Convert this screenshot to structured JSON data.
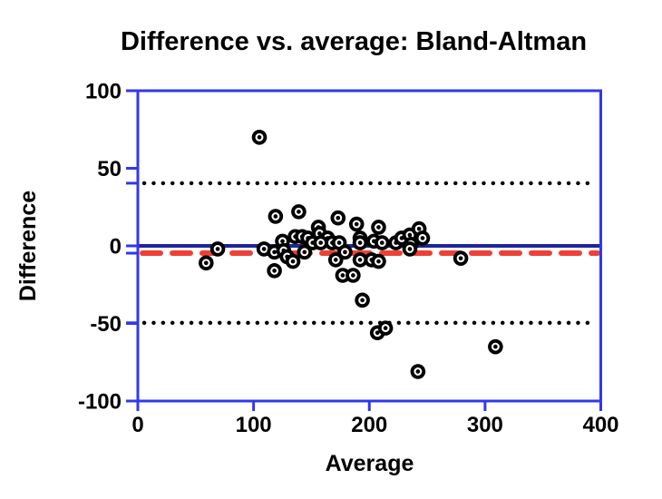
{
  "title": "Difference vs. average: Bland-Altman",
  "chart_data": {
    "type": "scatter",
    "title": "Difference vs. average: Bland-Altman",
    "xlabel": "Average",
    "ylabel": "Difference",
    "xlim": [
      0,
      400
    ],
    "ylim": [
      -100,
      100
    ],
    "x_ticks": [
      0,
      100,
      200,
      300,
      400
    ],
    "y_ticks": [
      100,
      50,
      0,
      -50,
      -100
    ],
    "grid": false,
    "legend": false,
    "marker": "filled-circle-with-center-dot",
    "reference_lines": [
      {
        "name": "zero-line",
        "y": 0,
        "style": "solid",
        "color": "#1f2496"
      },
      {
        "name": "mean-difference-line",
        "y": -4.7,
        "style": "dashed",
        "color": "#ee4036"
      },
      {
        "name": "upper-limit-of-agreement-line",
        "y": 40.4,
        "style": "dotted",
        "color": "#000000"
      },
      {
        "name": "lower-limit-of-agreement-line",
        "y": -49.6,
        "style": "dotted",
        "color": "#000000"
      }
    ],
    "points": [
      [
        105,
        70
      ],
      [
        119,
        19
      ],
      [
        139,
        22
      ],
      [
        156,
        12
      ],
      [
        173,
        18
      ],
      [
        189,
        14
      ],
      [
        208,
        12
      ],
      [
        69,
        -2
      ],
      [
        59,
        -11
      ],
      [
        109,
        -2
      ],
      [
        125,
        3
      ],
      [
        118,
        -4
      ],
      [
        126,
        -3
      ],
      [
        129,
        -7
      ],
      [
        118,
        -16
      ],
      [
        136,
        6
      ],
      [
        142,
        6
      ],
      [
        147,
        5
      ],
      [
        157,
        8
      ],
      [
        164,
        5
      ],
      [
        151,
        2
      ],
      [
        158,
        2
      ],
      [
        168,
        2
      ],
      [
        174,
        2
      ],
      [
        192,
        5
      ],
      [
        192,
        2
      ],
      [
        204,
        3
      ],
      [
        211,
        2
      ],
      [
        223,
        2
      ],
      [
        144,
        -4
      ],
      [
        179,
        -4
      ],
      [
        134,
        -10
      ],
      [
        171,
        -9
      ],
      [
        192,
        -9
      ],
      [
        202,
        -9
      ],
      [
        208,
        -10
      ],
      [
        177,
        -19
      ],
      [
        186,
        -19
      ],
      [
        194,
        -35
      ],
      [
        228,
        5
      ],
      [
        235,
        7
      ],
      [
        243,
        11
      ],
      [
        246,
        5
      ],
      [
        236,
        1
      ],
      [
        235,
        -2
      ],
      [
        279,
        -8
      ],
      [
        207,
        -56
      ],
      [
        214,
        -53
      ],
      [
        309,
        -65
      ],
      [
        242,
        -81
      ]
    ]
  },
  "colors": {
    "frame_blue": "#3137ee",
    "zero_line_blue": "#1f2496",
    "mean_line_red": "#ee4036",
    "limit_line_black": "#000000",
    "marker_black": "#000000",
    "text_black": "#000000",
    "background": "#ffffff"
  }
}
